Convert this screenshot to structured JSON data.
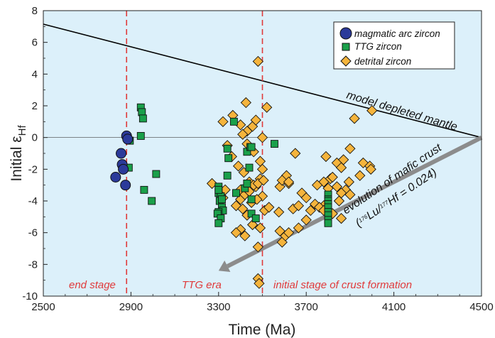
{
  "chart_data": {
    "type": "scatter",
    "xlabel": "Time (Ma)",
    "ylabel": "Initial εHf",
    "ylabel_main": "Initial ε",
    "ylabel_sub": "Hf",
    "xlim": [
      2500,
      4500
    ],
    "ylim": [
      -10,
      8
    ],
    "xticks": [
      2500,
      2900,
      3300,
      3700,
      4100,
      4500
    ],
    "yticks": [
      8,
      6,
      4,
      2,
      0,
      -2,
      -4,
      -6,
      -8,
      -10
    ],
    "background_color": "#dcefF8",
    "series": [
      {
        "name": "magmatic arc zircon",
        "marker": "circle",
        "color": "#2b3a9a",
        "x": [
          2880,
          2885,
          2855,
          2860,
          2865,
          2830,
          2875
        ],
        "y": [
          0.1,
          -0.1,
          -1.0,
          -1.7,
          -2.0,
          -2.5,
          -3.0
        ]
      },
      {
        "name": "TTG zircon",
        "marker": "square",
        "color": "#1aa04a",
        "x": [
          2945,
          2950,
          2955,
          2945,
          2895,
          2890,
          2960,
          2995,
          3015,
          3370,
          3300,
          3300,
          3310,
          3305,
          3315,
          3320,
          3300,
          3295,
          3310,
          3300,
          3315,
          3300,
          3340,
          3345,
          3340,
          3380,
          3420,
          3430,
          3445,
          3450,
          3440,
          3430,
          3450,
          3470,
          3450,
          3555,
          3800,
          3800,
          3800,
          3800,
          3800,
          3800,
          3800,
          3800,
          3800
        ],
        "y": [
          1.9,
          1.6,
          1.2,
          0.1,
          -0.2,
          -1.9,
          -3.3,
          -4.0,
          -2.3,
          1.0,
          -3.1,
          -3.5,
          -3.7,
          -4.0,
          -4.4,
          -4.6,
          -4.7,
          -4.8,
          -5.1,
          -5.4,
          -3.9,
          -3.3,
          -0.7,
          -1.3,
          -2.4,
          -3.5,
          -3.2,
          -0.9,
          -0.6,
          -0.6,
          -1.9,
          -2.9,
          -4.8,
          -5.1,
          -3.9,
          -0.4,
          -3.6,
          -3.9,
          -4.0,
          -4.2,
          -4.4,
          -4.7,
          -4.9,
          -5.2,
          -5.4
        ]
      },
      {
        "name": "detrital zircon",
        "marker": "diamond",
        "color": "#f5b43c",
        "x": [
          3480,
          3425,
          3520,
          3320,
          3365,
          3400,
          3430,
          3455,
          3470,
          3500,
          3410,
          3430,
          3460,
          3490,
          3340,
          3360,
          3390,
          3415,
          3440,
          3470,
          3490,
          3400,
          3500,
          3610,
          3620,
          3580,
          3640,
          3400,
          3420,
          3440,
          3460,
          3480,
          3505,
          3330,
          3320,
          3270,
          3450,
          3475,
          3500,
          3380,
          3410,
          3430,
          3455,
          3490,
          3400,
          3380,
          3420,
          3510,
          3530,
          3580,
          3590,
          3605,
          3620,
          3665,
          3700,
          3720,
          3780,
          3820,
          3860,
          3790,
          3840,
          3900,
          3860,
          3810,
          3780,
          3750,
          3680,
          3700,
          3740,
          3760,
          3820,
          3840,
          3880,
          3900,
          3960,
          3990,
          4000,
          3995,
          3945,
          3895,
          3860,
          3850,
          3800,
          3780,
          3870,
          3920,
          3650,
          3575,
          3590,
          3620,
          3665,
          3480,
          3480,
          3485
        ],
        "y": [
          4.8,
          2.2,
          1.9,
          1.0,
          1.4,
          0.8,
          0.4,
          0.7,
          1.1,
          0.0,
          0.2,
          -0.4,
          -0.9,
          -1.5,
          -0.5,
          -1.2,
          -1.8,
          -2.2,
          -2.8,
          -3.1,
          -2.6,
          -3.3,
          -3.7,
          -2.4,
          -2.9,
          -3.1,
          -4.5,
          -3.9,
          -3.6,
          -3.4,
          -3.0,
          -2.9,
          -2.7,
          -3.3,
          -3.8,
          -2.9,
          -4.1,
          -3.9,
          -2.0,
          -4.3,
          -4.5,
          -4.9,
          -5.5,
          -5.7,
          -5.8,
          -6.0,
          -6.2,
          -4.6,
          -4.4,
          -5.9,
          -6.6,
          -6.2,
          -6.0,
          -5.7,
          -5.2,
          -4.6,
          -4.3,
          -4.8,
          -5.1,
          -1.2,
          -1.6,
          -0.7,
          -1.9,
          -2.6,
          -2.8,
          -3.0,
          -3.5,
          -3.8,
          -4.2,
          -4.4,
          -2.5,
          -3.1,
          -3.3,
          -3.6,
          -1.6,
          -1.8,
          1.7,
          -2.0,
          -2.4,
          -2.8,
          -3.5,
          -4.0,
          -3.2,
          -4.6,
          -1.4,
          1.2,
          -1.0,
          -4.7,
          -2.7,
          -2.8,
          -4.3,
          -6.9,
          -8.9,
          -9.2
        ]
      }
    ],
    "reference_lines": {
      "depleted_mantle": {
        "x": [
          2500,
          4500
        ],
        "y": [
          7.15,
          0.0
        ],
        "color": "#000000"
      },
      "crust_evolution_arrow": {
        "x": [
          4500,
          3300
        ],
        "y": [
          0.0,
          -8.4
        ],
        "color": "#8c8c8c"
      },
      "vertical_dashed": {
        "x": [
          2880,
          3500
        ],
        "color": "#e03a3a"
      }
    },
    "annotations": {
      "end_stage": "end stage",
      "ttg_era": "TTG era",
      "initial_stage": "initial stage of crust formation",
      "mantle_label": "model depleted mantle",
      "arrow_label_1": "evolution of mafic crust",
      "arrow_label_2_a": "(",
      "arrow_label_2_sup1": "176",
      "arrow_label_2_b": "Lu/",
      "arrow_label_2_sup2": "177",
      "arrow_label_2_c": "Hf = 0.024)"
    },
    "legend": {
      "placement": "top-right",
      "entries": [
        "magmatic arc zircon",
        "TTG zircon",
        "detrital zircon"
      ]
    }
  }
}
